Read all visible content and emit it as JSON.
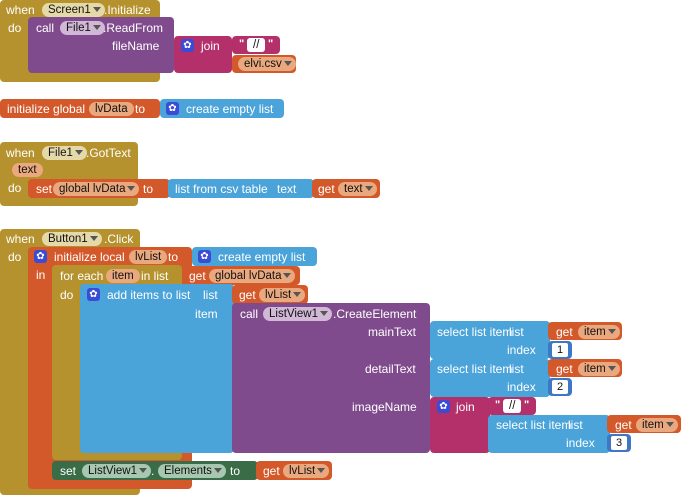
{
  "colors": {
    "event": "#b5922e",
    "procedure": "#7f4b8c",
    "text": "#b4306a",
    "variable": "#d3592b",
    "list": "#4aa3d9",
    "component": "#3a6c48"
  },
  "kw": {
    "when": "when",
    "do": "do",
    "call": "call",
    "set": "set",
    "to": "to",
    "get": "get",
    "in": "in",
    "join": "join",
    "text": "text",
    "list": "list",
    "index": "index",
    "item": "item"
  },
  "block1": {
    "component": "Screen1",
    "event": ".Initialize",
    "call_component": "File1",
    "method": ".ReadFrom",
    "param": "fileName",
    "str1": "//",
    "str2": "elvi.csv"
  },
  "block2": {
    "label": "initialize global",
    "var": "lvData",
    "value": "create empty list"
  },
  "block3": {
    "component": "File1",
    "event": ".GotText",
    "event_param": "text",
    "set_var": "global lvData",
    "fn": "list from csv table",
    "fn_param": "text",
    "get_var": "text"
  },
  "block4": {
    "component": "Button1",
    "event": ".Click",
    "init_local": "initialize local",
    "local_var": "lvList",
    "local_value": "create empty list",
    "for_each": "for each",
    "loop_var": "item",
    "in_list": "in list",
    "loop_list": "global lvData",
    "add_items": "add items to list",
    "add_list_var": "lvList",
    "create_component": "ListView1",
    "create_method": ".CreateElement",
    "main_text": "mainText",
    "detail_text": "detailText",
    "image_name": "imageName",
    "select_item": "select list item",
    "idx1": "1",
    "idx2": "2",
    "idx3": "3",
    "join_str": "//",
    "set_component": "ListView1",
    "set_prop": "Elements",
    "set_get": "lvList"
  }
}
